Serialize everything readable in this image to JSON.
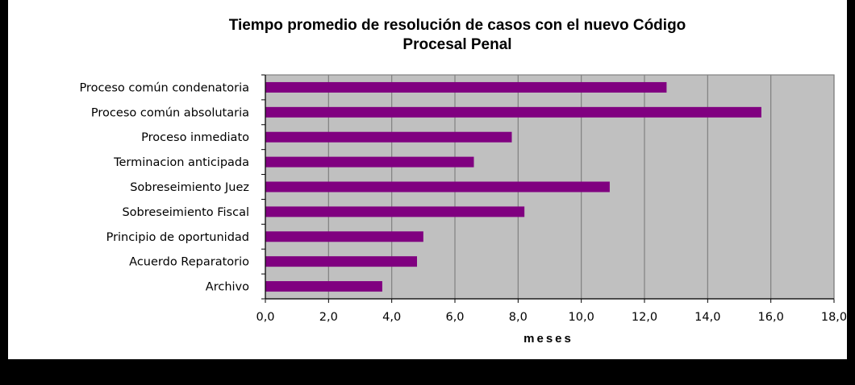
{
  "chart_data": {
    "type": "bar",
    "orientation": "horizontal",
    "title_lines": [
      "Tiempo promedio de resolución de casos con el nuevo Código",
      "Procesal Penal"
    ],
    "xlabel": "meses",
    "ylabel": "",
    "categories": [
      "Proceso común condenatoria",
      "Proceso común absolutaria",
      "Proceso inmediato",
      "Terminacion anticipada",
      "Sobreseimiento Juez",
      "Sobreseimiento Fiscal",
      "Principio de oportunidad",
      "Acuerdo Reparatorio",
      "Archivo"
    ],
    "values": [
      12.7,
      15.7,
      7.8,
      6.6,
      10.9,
      8.2,
      5.0,
      4.8,
      3.7
    ],
    "xlim": [
      0,
      18
    ],
    "x_ticks": [
      "0,0",
      "2,0",
      "4,0",
      "6,0",
      "8,0",
      "10,0",
      "12,0",
      "14,0",
      "16,0",
      "18,0"
    ],
    "grid": "vertical",
    "legend": "none",
    "colors": {
      "bar": "#800080",
      "plot_background": "#C0C0C0",
      "gridline": "#808080",
      "page_background": "#FFFFFF",
      "border": "#000000"
    }
  }
}
